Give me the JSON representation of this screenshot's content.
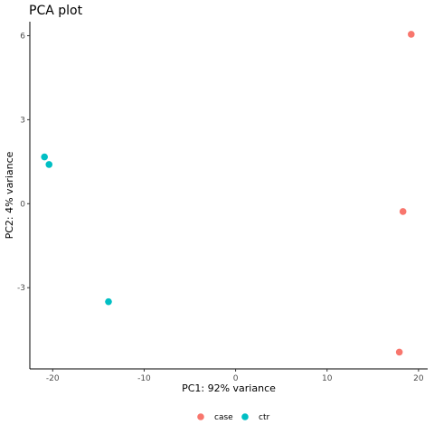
{
  "chart_data": {
    "type": "scatter",
    "title": "PCA plot",
    "xlabel": "PC1: 92% variance",
    "ylabel": "PC2: 4% variance",
    "xlim": [
      -22.5,
      21.0
    ],
    "ylim": [
      -5.9,
      6.5
    ],
    "xticks": [
      -20,
      -10,
      0,
      10,
      20
    ],
    "yticks": [
      -3,
      0,
      3,
      6
    ],
    "grid": false,
    "legend_position": "bottom",
    "series": [
      {
        "name": "case",
        "color": "#F8766D",
        "points": [
          {
            "x": 19.2,
            "y": 6.05
          },
          {
            "x": 18.3,
            "y": -0.28
          },
          {
            "x": 17.9,
            "y": -5.3
          }
        ]
      },
      {
        "name": "ctr",
        "color": "#00BFC4",
        "points": [
          {
            "x": -20.9,
            "y": 1.67
          },
          {
            "x": -20.4,
            "y": 1.4
          },
          {
            "x": -13.9,
            "y": -3.5
          }
        ]
      }
    ]
  }
}
